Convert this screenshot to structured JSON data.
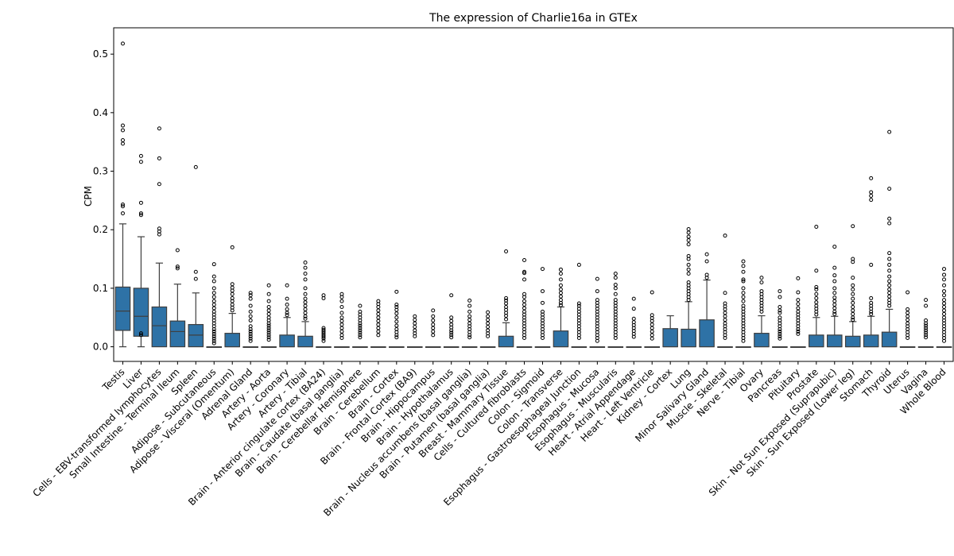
{
  "chart_data": {
    "type": "box",
    "title": "The expression of Charlie16a in GTEx",
    "xlabel": "",
    "ylabel": "CPM",
    "ylim": [
      -0.025,
      0.545
    ],
    "yticks": [
      0.0,
      0.1,
      0.2,
      0.3,
      0.4,
      0.5
    ],
    "ytick_labels": [
      "0.0",
      "0.1",
      "0.2",
      "0.3",
      "0.4",
      "0.5"
    ],
    "grid": false,
    "legend": "none",
    "box_color": "#2e72a6",
    "categories": [
      "Testis",
      "Liver",
      "Cells - EBV-transformed lymphocytes",
      "Small Intestine - Terminal Ileum",
      "Spleen",
      "Adipose - Subcutaneous",
      "Adipose - Visceral (Omentum)",
      "Adrenal Gland",
      "Artery - Aorta",
      "Artery - Coronary",
      "Artery - Tibial",
      "Brain - Anterior cingulate cortex (BA24)",
      "Brain - Caudate (basal ganglia)",
      "Brain - Cerebellar Hemisphere",
      "Brain - Cerebellum",
      "Brain - Cortex",
      "Brain - Frontal Cortex (BA9)",
      "Brain - Hippocampus",
      "Brain - Hypothalamus",
      "Brain - Nucleus accumbens (basal ganglia)",
      "Brain - Putamen (basal ganglia)",
      "Breast - Mammary Tissue",
      "Cells - Cultured fibroblasts",
      "Colon - Sigmoid",
      "Colon - Transverse",
      "Esophagus - Gastroesophageal Junction",
      "Esophagus - Mucosa",
      "Esophagus - Muscularis",
      "Heart - Atrial Appendage",
      "Heart - Left Ventricle",
      "Kidney - Cortex",
      "Lung",
      "Minor Salivary Gland",
      "Muscle - Skeletal",
      "Nerve - Tibial",
      "Ovary",
      "Pancreas",
      "Pituitary",
      "Prostate",
      "Skin - Not Sun Exposed (Suprapubic)",
      "Skin - Sun Exposed (Lower leg)",
      "Stomach",
      "Thyroid",
      "Uterus",
      "Vagina",
      "Whole Blood"
    ],
    "boxes": [
      {
        "q1": 0.028,
        "median": 0.061,
        "q3": 0.102,
        "whislo": 0.0,
        "whishi": 0.21,
        "fliers": [
          0.518,
          0.378,
          0.37,
          0.353,
          0.347,
          0.243,
          0.24,
          0.228
        ]
      },
      {
        "q1": 0.018,
        "median": 0.052,
        "q3": 0.1,
        "whislo": 0.0,
        "whishi": 0.188,
        "fliers": [
          0.326,
          0.316,
          0.246,
          0.228,
          0.225,
          0.023,
          0.02
        ]
      },
      {
        "q1": 0.0,
        "median": 0.036,
        "q3": 0.068,
        "whislo": 0.0,
        "whishi": 0.143,
        "fliers": [
          0.373,
          0.322,
          0.278,
          0.202,
          0.197,
          0.192
        ]
      },
      {
        "q1": 0.0,
        "median": 0.026,
        "q3": 0.044,
        "whislo": 0.0,
        "whishi": 0.107,
        "fliers": [
          0.165,
          0.137,
          0.134
        ]
      },
      {
        "q1": 0.0,
        "median": 0.02,
        "q3": 0.038,
        "whislo": 0.0,
        "whishi": 0.092,
        "fliers": [
          0.307,
          0.128,
          0.116
        ]
      },
      {
        "q1": 0.0,
        "median": 0.0,
        "q3": 0.0,
        "whislo": 0.0,
        "whishi": 0.0,
        "fliers": [
          0.141,
          0.12,
          0.112,
          0.1,
          0.092,
          0.085,
          0.078,
          0.072,
          0.066,
          0.06,
          0.055,
          0.05,
          0.045,
          0.04,
          0.035,
          0.03,
          0.026,
          0.022,
          0.018,
          0.014,
          0.01,
          0.006
        ]
      },
      {
        "q1": 0.0,
        "median": 0.0,
        "q3": 0.023,
        "whislo": 0.0,
        "whishi": 0.057,
        "fliers": [
          0.17,
          0.107,
          0.101,
          0.096,
          0.09,
          0.083,
          0.078,
          0.072,
          0.067,
          0.062
        ]
      },
      {
        "q1": 0.0,
        "median": 0.0,
        "q3": 0.0,
        "whislo": 0.0,
        "whishi": 0.0,
        "fliers": [
          0.092,
          0.088,
          0.082,
          0.07,
          0.06,
          0.052,
          0.045,
          0.035,
          0.03,
          0.026,
          0.022,
          0.018,
          0.014,
          0.01
        ]
      },
      {
        "q1": 0.0,
        "median": 0.0,
        "q3": 0.0,
        "whislo": 0.0,
        "whishi": 0.0,
        "fliers": [
          0.105,
          0.09,
          0.078,
          0.068,
          0.062,
          0.056,
          0.05,
          0.045,
          0.04,
          0.036,
          0.032,
          0.028,
          0.024,
          0.02,
          0.016,
          0.012
        ]
      },
      {
        "q1": 0.0,
        "median": 0.0,
        "q3": 0.02,
        "whislo": 0.0,
        "whishi": 0.05,
        "fliers": [
          0.105,
          0.082,
          0.072,
          0.064,
          0.058,
          0.054
        ]
      },
      {
        "q1": 0.0,
        "median": 0.0,
        "q3": 0.018,
        "whislo": 0.0,
        "whishi": 0.043,
        "fliers": [
          0.144,
          0.135,
          0.125,
          0.115,
          0.1,
          0.09,
          0.082,
          0.076,
          0.07,
          0.064,
          0.058,
          0.052,
          0.048
        ]
      },
      {
        "q1": 0.0,
        "median": 0.0,
        "q3": 0.0,
        "whislo": 0.0,
        "whishi": 0.0,
        "fliers": [
          0.088,
          0.083,
          0.032,
          0.029,
          0.026,
          0.023,
          0.02,
          0.017,
          0.014,
          0.01
        ]
      },
      {
        "q1": 0.0,
        "median": 0.0,
        "q3": 0.0,
        "whislo": 0.0,
        "whishi": 0.0,
        "fliers": [
          0.09,
          0.085,
          0.078,
          0.068,
          0.058,
          0.05,
          0.044,
          0.038,
          0.032,
          0.026,
          0.02,
          0.015
        ]
      },
      {
        "q1": 0.0,
        "median": 0.0,
        "q3": 0.0,
        "whislo": 0.0,
        "whishi": 0.0,
        "fliers": [
          0.07,
          0.06,
          0.055,
          0.05,
          0.045,
          0.04,
          0.036,
          0.032,
          0.028,
          0.024,
          0.02,
          0.016
        ]
      },
      {
        "q1": 0.0,
        "median": 0.0,
        "q3": 0.0,
        "whislo": 0.0,
        "whishi": 0.0,
        "fliers": [
          0.078,
          0.073,
          0.068,
          0.062,
          0.056,
          0.05,
          0.044,
          0.038,
          0.032,
          0.026,
          0.02
        ]
      },
      {
        "q1": 0.0,
        "median": 0.0,
        "q3": 0.0,
        "whislo": 0.0,
        "whishi": 0.0,
        "fliers": [
          0.094,
          0.072,
          0.068,
          0.063,
          0.057,
          0.05,
          0.043,
          0.036,
          0.03,
          0.025,
          0.02,
          0.016
        ]
      },
      {
        "q1": 0.0,
        "median": 0.0,
        "q3": 0.0,
        "whislo": 0.0,
        "whishi": 0.0,
        "fliers": [
          0.052,
          0.046,
          0.04,
          0.034,
          0.028,
          0.023,
          0.018
        ]
      },
      {
        "q1": 0.0,
        "median": 0.0,
        "q3": 0.0,
        "whislo": 0.0,
        "whishi": 0.0,
        "fliers": [
          0.062,
          0.052,
          0.045,
          0.038,
          0.032,
          0.026,
          0.02
        ]
      },
      {
        "q1": 0.0,
        "median": 0.0,
        "q3": 0.0,
        "whislo": 0.0,
        "whishi": 0.0,
        "fliers": [
          0.088,
          0.05,
          0.044,
          0.038,
          0.033,
          0.028,
          0.024,
          0.02,
          0.016
        ]
      },
      {
        "q1": 0.0,
        "median": 0.0,
        "q3": 0.0,
        "whislo": 0.0,
        "whishi": 0.0,
        "fliers": [
          0.079,
          0.07,
          0.06,
          0.052,
          0.046,
          0.04,
          0.035,
          0.03,
          0.025,
          0.02,
          0.016
        ]
      },
      {
        "q1": 0.0,
        "median": 0.0,
        "q3": 0.0,
        "whislo": 0.0,
        "whishi": 0.0,
        "fliers": [
          0.059,
          0.052,
          0.046,
          0.04,
          0.034,
          0.028,
          0.023,
          0.018
        ]
      },
      {
        "q1": 0.0,
        "median": 0.0,
        "q3": 0.018,
        "whislo": 0.0,
        "whishi": 0.041,
        "fliers": [
          0.163,
          0.083,
          0.079,
          0.074,
          0.068,
          0.063,
          0.058,
          0.053,
          0.047
        ]
      },
      {
        "q1": 0.0,
        "median": 0.0,
        "q3": 0.0,
        "whislo": 0.0,
        "whishi": 0.0,
        "fliers": [
          0.148,
          0.128,
          0.126,
          0.115,
          0.09,
          0.085,
          0.078,
          0.072,
          0.066,
          0.06,
          0.055,
          0.05,
          0.045,
          0.04,
          0.035,
          0.03,
          0.025,
          0.02,
          0.015
        ]
      },
      {
        "q1": 0.0,
        "median": 0.0,
        "q3": 0.0,
        "whislo": 0.0,
        "whishi": 0.0,
        "fliers": [
          0.133,
          0.095,
          0.075,
          0.06,
          0.055,
          0.05,
          0.045,
          0.04,
          0.035,
          0.03,
          0.025,
          0.02,
          0.015
        ]
      },
      {
        "q1": 0.0,
        "median": 0.0,
        "q3": 0.027,
        "whislo": 0.0,
        "whishi": 0.068,
        "fliers": [
          0.132,
          0.125,
          0.115,
          0.105,
          0.098,
          0.092,
          0.086,
          0.08,
          0.075,
          0.071
        ]
      },
      {
        "q1": 0.0,
        "median": 0.0,
        "q3": 0.0,
        "whislo": 0.0,
        "whishi": 0.0,
        "fliers": [
          0.14,
          0.074,
          0.07,
          0.065,
          0.06,
          0.055,
          0.05,
          0.045,
          0.04,
          0.035,
          0.03,
          0.025,
          0.02,
          0.015
        ]
      },
      {
        "q1": 0.0,
        "median": 0.0,
        "q3": 0.0,
        "whislo": 0.0,
        "whishi": 0.0,
        "fliers": [
          0.116,
          0.095,
          0.08,
          0.075,
          0.07,
          0.065,
          0.06,
          0.055,
          0.05,
          0.045,
          0.04,
          0.035,
          0.03,
          0.025,
          0.02,
          0.015,
          0.01
        ]
      },
      {
        "q1": 0.0,
        "median": 0.0,
        "q3": 0.0,
        "whislo": 0.0,
        "whishi": 0.0,
        "fliers": [
          0.125,
          0.118,
          0.106,
          0.1,
          0.09,
          0.08,
          0.075,
          0.07,
          0.065,
          0.06,
          0.055,
          0.05,
          0.045,
          0.04,
          0.035,
          0.03,
          0.025,
          0.02,
          0.015
        ]
      },
      {
        "q1": 0.0,
        "median": 0.0,
        "q3": 0.0,
        "whislo": 0.0,
        "whishi": 0.0,
        "fliers": [
          0.082,
          0.065,
          0.048,
          0.042,
          0.037,
          0.032,
          0.027,
          0.022,
          0.017
        ]
      },
      {
        "q1": 0.0,
        "median": 0.0,
        "q3": 0.0,
        "whislo": 0.0,
        "whishi": 0.0,
        "fliers": [
          0.093,
          0.054,
          0.049,
          0.044,
          0.038,
          0.032,
          0.026,
          0.02,
          0.014
        ]
      },
      {
        "q1": 0.0,
        "median": 0.0,
        "q3": 0.031,
        "whislo": 0.0,
        "whishi": 0.053,
        "fliers": []
      },
      {
        "q1": 0.0,
        "median": 0.0,
        "q3": 0.03,
        "whislo": 0.0,
        "whishi": 0.077,
        "fliers": [
          0.201,
          0.195,
          0.188,
          0.182,
          0.175,
          0.155,
          0.15,
          0.14,
          0.132,
          0.125,
          0.11,
          0.105,
          0.1,
          0.095,
          0.09,
          0.085,
          0.08
        ]
      },
      {
        "q1": 0.0,
        "median": 0.0,
        "q3": 0.046,
        "whislo": 0.0,
        "whishi": 0.114,
        "fliers": [
          0.158,
          0.146,
          0.123,
          0.118
        ]
      },
      {
        "q1": 0.0,
        "median": 0.0,
        "q3": 0.0,
        "whislo": 0.0,
        "whishi": 0.0,
        "fliers": [
          0.19,
          0.092,
          0.074,
          0.069,
          0.064,
          0.058,
          0.052,
          0.046,
          0.04,
          0.035,
          0.03,
          0.025,
          0.02,
          0.015
        ]
      },
      {
        "q1": 0.0,
        "median": 0.0,
        "q3": 0.0,
        "whislo": 0.0,
        "whishi": 0.0,
        "fliers": [
          0.146,
          0.138,
          0.128,
          0.115,
          0.112,
          0.1,
          0.092,
          0.085,
          0.078,
          0.07,
          0.065,
          0.06,
          0.055,
          0.05,
          0.045,
          0.04,
          0.035,
          0.03,
          0.025,
          0.02,
          0.015,
          0.01
        ]
      },
      {
        "q1": 0.0,
        "median": 0.0,
        "q3": 0.023,
        "whislo": 0.0,
        "whishi": 0.053,
        "fliers": [
          0.118,
          0.11,
          0.095,
          0.09,
          0.085,
          0.08,
          0.075,
          0.07,
          0.065,
          0.06
        ]
      },
      {
        "q1": 0.0,
        "median": 0.0,
        "q3": 0.0,
        "whislo": 0.0,
        "whishi": 0.0,
        "fliers": [
          0.095,
          0.085,
          0.068,
          0.062,
          0.058,
          0.05,
          0.045,
          0.04,
          0.035,
          0.03,
          0.026,
          0.022,
          0.018,
          0.014
        ]
      },
      {
        "q1": 0.0,
        "median": 0.0,
        "q3": 0.0,
        "whislo": 0.0,
        "whishi": 0.0,
        "fliers": [
          0.117,
          0.093,
          0.08,
          0.073,
          0.066,
          0.06,
          0.055,
          0.05,
          0.045,
          0.04,
          0.035,
          0.03,
          0.026,
          0.022
        ]
      },
      {
        "q1": 0.0,
        "median": 0.0,
        "q3": 0.02,
        "whislo": 0.0,
        "whishi": 0.05,
        "fliers": [
          0.205,
          0.13,
          0.102,
          0.098,
          0.09,
          0.083,
          0.076,
          0.07,
          0.065,
          0.06,
          0.055
        ]
      },
      {
        "q1": 0.0,
        "median": 0.0,
        "q3": 0.02,
        "whislo": 0.0,
        "whishi": 0.052,
        "fliers": [
          0.171,
          0.135,
          0.122,
          0.112,
          0.1,
          0.092,
          0.084,
          0.078,
          0.072,
          0.066,
          0.06,
          0.056
        ]
      },
      {
        "q1": 0.0,
        "median": 0.0,
        "q3": 0.018,
        "whislo": 0.0,
        "whishi": 0.043,
        "fliers": [
          0.206,
          0.15,
          0.145,
          0.118,
          0.105,
          0.098,
          0.09,
          0.082,
          0.075,
          0.068,
          0.062,
          0.056,
          0.05,
          0.046
        ]
      },
      {
        "q1": 0.0,
        "median": 0.0,
        "q3": 0.02,
        "whislo": 0.0,
        "whishi": 0.052,
        "fliers": [
          0.288,
          0.264,
          0.258,
          0.251,
          0.14,
          0.083,
          0.075,
          0.07,
          0.065,
          0.06,
          0.056
        ]
      },
      {
        "q1": 0.0,
        "median": 0.0,
        "q3": 0.025,
        "whislo": 0.0,
        "whishi": 0.064,
        "fliers": [
          0.367,
          0.27,
          0.219,
          0.211,
          0.16,
          0.15,
          0.14,
          0.13,
          0.12,
          0.112,
          0.105,
          0.098,
          0.092,
          0.086,
          0.08,
          0.075,
          0.07
        ]
      },
      {
        "q1": 0.0,
        "median": 0.0,
        "q3": 0.0,
        "whislo": 0.0,
        "whishi": 0.0,
        "fliers": [
          0.093,
          0.064,
          0.058,
          0.052,
          0.046,
          0.04,
          0.035,
          0.03,
          0.025,
          0.02,
          0.015
        ]
      },
      {
        "q1": 0.0,
        "median": 0.0,
        "q3": 0.0,
        "whislo": 0.0,
        "whishi": 0.0,
        "fliers": [
          0.08,
          0.07,
          0.045,
          0.04,
          0.036,
          0.032,
          0.028,
          0.024,
          0.02,
          0.016
        ]
      },
      {
        "q1": 0.0,
        "median": 0.0,
        "q3": 0.0,
        "whislo": 0.0,
        "whishi": 0.0,
        "fliers": [
          0.133,
          0.123,
          0.115,
          0.105,
          0.095,
          0.088,
          0.08,
          0.074,
          0.068,
          0.062,
          0.056,
          0.05,
          0.045,
          0.04,
          0.035,
          0.03,
          0.025,
          0.02,
          0.015,
          0.01
        ]
      }
    ]
  }
}
